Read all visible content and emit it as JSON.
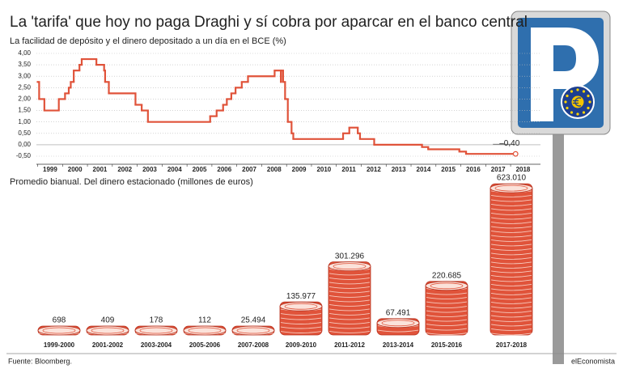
{
  "title": "La 'tarifa' que hoy no paga Draghi y sí cobra por aparcar en el banco central",
  "source": "Fuente: Bloomberg.",
  "brand": "elEconomista",
  "chart_data": [
    {
      "type": "line",
      "title": "La facilidad de depósito y el dinero depositado a un día en el BCE (%)",
      "annotation": "–0,40",
      "color": "#e0533a",
      "grid": true,
      "x": [
        1999.0,
        1999.06,
        1999.27,
        1999.85,
        2000.1,
        2000.25,
        2000.33,
        2000.45,
        2000.68,
        2000.77,
        2001.36,
        2001.67,
        2001.71,
        2001.86,
        2002.93,
        2003.18,
        2003.43,
        2005.93,
        2006.19,
        2006.45,
        2006.6,
        2006.78,
        2006.95,
        2007.2,
        2007.45,
        2008.52,
        2008.77,
        2008.78,
        2008.86,
        2008.94,
        2009.05,
        2009.2,
        2009.27,
        2011.27,
        2011.52,
        2011.86,
        2011.95,
        2012.52,
        2014.44,
        2014.69,
        2015.94,
        2016.21,
        2018.2
      ],
      "values": [
        2.75,
        2.0,
        1.5,
        2.0,
        2.25,
        2.5,
        2.75,
        3.25,
        3.5,
        3.75,
        3.5,
        3.25,
        2.75,
        2.25,
        1.75,
        1.5,
        1.0,
        1.25,
        1.5,
        1.75,
        2.0,
        2.25,
        2.5,
        2.75,
        3.0,
        3.25,
        2.75,
        3.25,
        2.75,
        2.0,
        1.0,
        0.5,
        0.25,
        0.5,
        0.75,
        0.5,
        0.25,
        0.0,
        -0.1,
        -0.2,
        -0.3,
        -0.4,
        -0.4
      ],
      "xlim": [
        1998.95,
        2019.2
      ],
      "xticks": [
        1999,
        2000,
        2001,
        2002,
        2003,
        2004,
        2005,
        2006,
        2007,
        2008,
        2009,
        2010,
        2011,
        2012,
        2013,
        2014,
        2015,
        2016,
        2017,
        2018
      ],
      "ylim": [
        -0.5,
        4.0
      ],
      "yticks": [
        {
          "value": 4.0,
          "label": "4,00"
        },
        {
          "value": 3.5,
          "label": "3,50"
        },
        {
          "value": 3.0,
          "label": "3,00"
        },
        {
          "value": 2.5,
          "label": "2,50"
        },
        {
          "value": 2.0,
          "label": "2,00"
        },
        {
          "value": 1.5,
          "label": "1,50"
        },
        {
          "value": 1.0,
          "label": "1,00"
        },
        {
          "value": 0.5,
          "label": "0,50"
        },
        {
          "value": 0.0,
          "label": "0,00"
        },
        {
          "value": -0.5,
          "label": "-0,50"
        }
      ]
    },
    {
      "type": "coins",
      "title": "Promedio bianual. Del dinero estacionado (millones de euros)",
      "color": "#e0533a",
      "categories": [
        "1999-2000",
        "2001-2002",
        "2003-2004",
        "2005-2006",
        "2007-2008",
        "2009-2010",
        "2011-2012",
        "2013-2014",
        "2015-2016",
        "2017-2018"
      ],
      "values": [
        698,
        409,
        178,
        112,
        25494,
        135977,
        301296,
        67491,
        220685,
        623010
      ],
      "value_labels": [
        "698",
        "409",
        "178",
        "112",
        "25.494",
        "135.977",
        "301.296",
        "67.491",
        "220.685",
        "623.010"
      ],
      "ylim": [
        0,
        650000
      ]
    }
  ]
}
